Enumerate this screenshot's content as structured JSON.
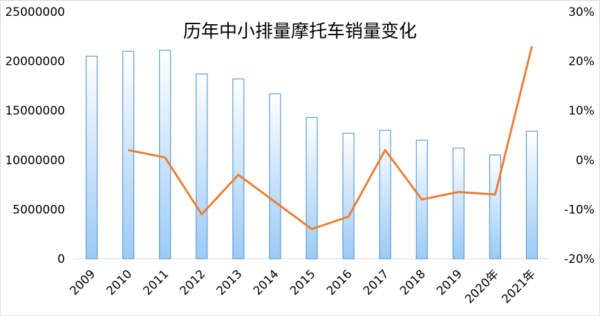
{
  "chart_data": {
    "type": "bar+line",
    "title": "历年中小排量摩托车销量变化",
    "categories": [
      "2009",
      "2010",
      "2011",
      "2012",
      "2013",
      "2014",
      "2015",
      "2016",
      "2017",
      "2018",
      "2019",
      "2020年",
      "2021年"
    ],
    "series": [
      {
        "type": "bar",
        "axis": "left",
        "values": [
          20500000,
          21000000,
          21100000,
          18700000,
          18200000,
          16700000,
          14300000,
          12700000,
          13000000,
          12000000,
          11200000,
          10500000,
          12900000
        ]
      },
      {
        "type": "line",
        "axis": "right",
        "values": [
          null,
          2.0,
          0.5,
          -11.0,
          -3.0,
          -8.5,
          -14.0,
          -11.5,
          2.0,
          -8.0,
          -6.5,
          -7.0,
          23.0
        ]
      }
    ],
    "y_left": {
      "min": 0,
      "max": 25000000,
      "ticks": [
        "0",
        "5000000",
        "10000000",
        "15000000",
        "20000000",
        "25000000"
      ]
    },
    "y_right": {
      "min": -20,
      "max": 30,
      "ticks": [
        "-20%",
        "-10%",
        "0%",
        "10%",
        "20%",
        "30%"
      ]
    },
    "grid": false,
    "legend": "none",
    "colors": {
      "bar_fill_top": "#ffffff",
      "bar_fill_bottom": "#9ccaf5",
      "bar_stroke": "#5b9bd5",
      "line": "#ed7d31",
      "axis": "#d9d9d9"
    }
  }
}
